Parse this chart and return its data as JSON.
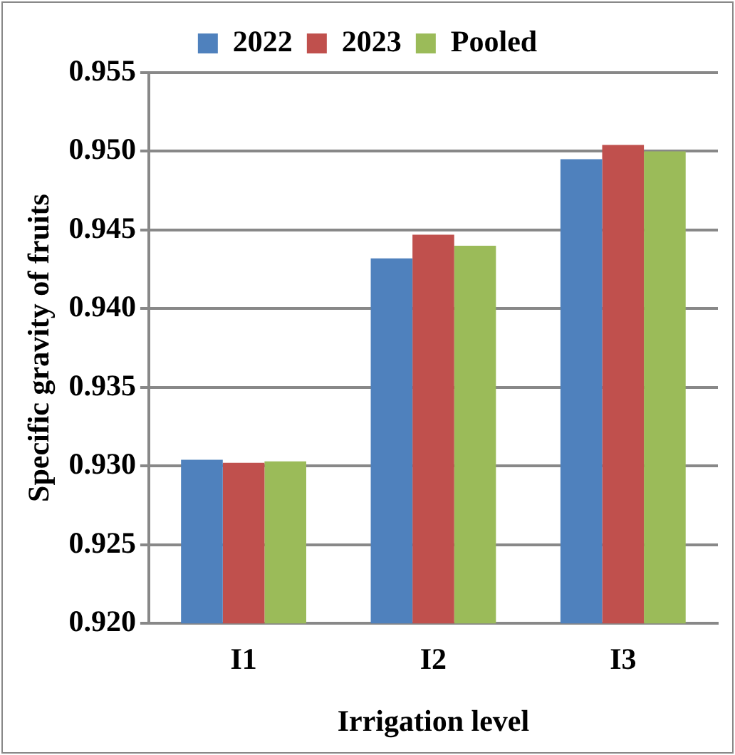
{
  "chart_data": {
    "type": "bar",
    "xlabel": "Irrigation level",
    "ylabel": "Specific gravity of fruits",
    "categories": [
      "I1",
      "I2",
      "I3"
    ],
    "series": [
      {
        "name": "2022",
        "color": "#4f81bd",
        "values": [
          0.9304,
          0.9432,
          0.9495
        ]
      },
      {
        "name": "2023",
        "color": "#c0504d",
        "values": [
          0.9302,
          0.9447,
          0.9504
        ]
      },
      {
        "name": "Pooled",
        "color": "#9bbb59",
        "values": [
          0.9303,
          0.944,
          0.95
        ]
      }
    ],
    "ylim": [
      0.92,
      0.955
    ],
    "yticks": [
      {
        "value": 0.92,
        "label": "0.920"
      },
      0.925,
      {
        "value": 0.93,
        "label": "0.930"
      },
      0.935,
      {
        "value": 0.94,
        "label": "0.940"
      },
      0.945,
      {
        "value": 0.95,
        "label": "0.950"
      },
      0.955
    ],
    "grid": "y",
    "legend": "top"
  }
}
